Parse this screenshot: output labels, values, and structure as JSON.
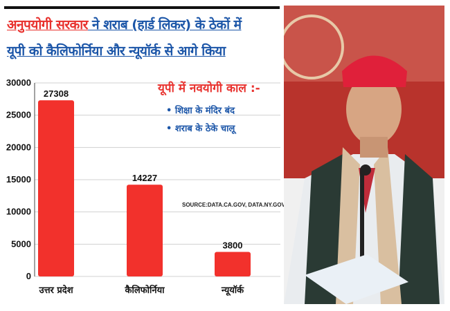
{
  "headline": {
    "red_part": "अनुपयोगी सरकार",
    "line1_rest": " ने शराब (हार्ड लिकर) के ठेकों में",
    "line2": "यूपी को  कैलिफोर्निया और न्यूयॉर्क से आगे किया"
  },
  "annotation": {
    "title": "यूपी में नवयोगी काल :-",
    "items": [
      "• शिक्षा के मंदिर बंद",
      "• शराब के ठेके चालू"
    ]
  },
  "source": "SOURCE:DATA.CA.GOV, DATA.NY.GOV",
  "colors": {
    "bar": "#f2312c",
    "red_text": "#e8322e",
    "blue_text": "#1c56a8"
  },
  "chart_data": {
    "type": "bar",
    "categories": [
      "उत्तर प्रदेश",
      "कैलिफोर्निया",
      "न्यूयॉर्क"
    ],
    "values": [
      27308,
      14227,
      3800
    ],
    "value_labels": [
      "27308",
      "14227",
      "3800"
    ],
    "ylim": [
      0,
      30000
    ],
    "yticks": [
      "0",
      "5000",
      "10000",
      "15000",
      "20000",
      "25000",
      "30000"
    ],
    "grid": true,
    "title": "",
    "xlabel": "",
    "ylabel": ""
  }
}
